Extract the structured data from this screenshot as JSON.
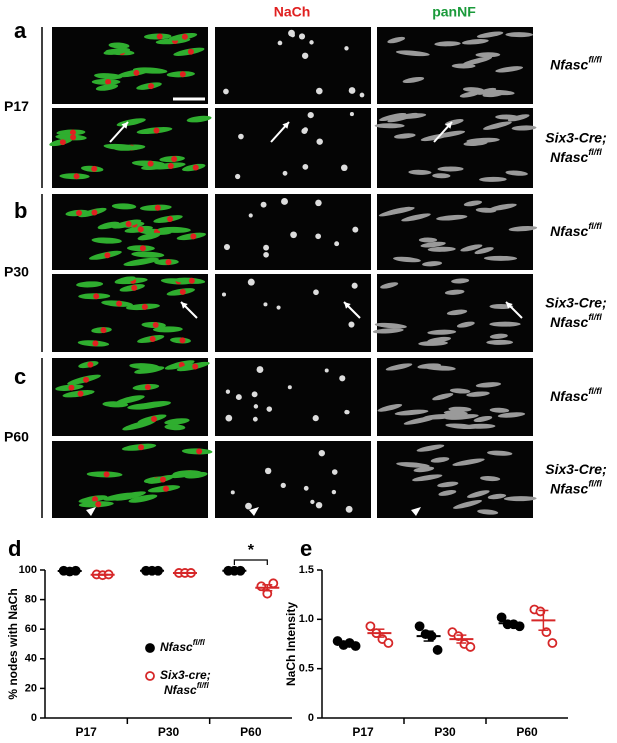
{
  "figure": {
    "panels": [
      {
        "letter": "a",
        "age": "P17"
      },
      {
        "letter": "b",
        "age": "P30"
      },
      {
        "letter": "c",
        "age": "P60"
      }
    ],
    "column_headers": [
      "NaCh",
      "panNF"
    ],
    "genotypes": [
      {
        "text": "Nfasc",
        "sup": "fl/fl"
      },
      {
        "line1": "Six3-Cre;",
        "text": "Nfasc",
        "sup": "fl/fl"
      }
    ]
  },
  "chart_data": [
    {
      "type": "scatter",
      "panel_label": "d",
      "y_label": "% nodes with NaCh",
      "annotation": "*",
      "categories": [
        "P17",
        "P30",
        "P60"
      ],
      "ylim": [
        0,
        100
      ],
      "yticks": [
        0,
        20,
        40,
        60,
        80,
        100
      ],
      "series": [
        {
          "name": [
            "Nfasc"
          ],
          "name_sup": "fl/fl",
          "color": "#000000",
          "filled": true,
          "values": [
            [
              99.5,
              99,
              99.5
            ],
            [
              99.5,
              99.5,
              99.5
            ],
            [
              99.5,
              99.5,
              99.5
            ]
          ],
          "means": [
            99.3,
            99.5,
            99.5
          ],
          "errors": [
            0.2,
            0.2,
            0.2
          ]
        },
        {
          "name": [
            "Six3-cre;",
            "Nfasc"
          ],
          "name_sup": "fl/fl",
          "color": "#d62728",
          "filled": false,
          "values": [
            [
              97,
              96.5,
              97
            ],
            [
              98,
              98,
              98
            ],
            [
              89,
              84,
              91
            ]
          ],
          "means": [
            96.8,
            98,
            88
          ],
          "errors": [
            0.2,
            0.2,
            2
          ]
        }
      ]
    },
    {
      "type": "scatter",
      "panel_label": "e",
      "y_label": "NaCh Intensity",
      "categories": [
        "P17",
        "P30",
        "P60"
      ],
      "ylim": [
        0,
        1.5
      ],
      "yticks": [
        0,
        0.5,
        {
          "value": 1,
          "label": "1.0"
        },
        1.5
      ],
      "series": [
        {
          "color": "#000000",
          "filled": true,
          "values": [
            [
              0.78,
              0.74,
              0.76,
              0.73
            ],
            [
              0.93,
              0.85,
              0.83,
              0.69
            ],
            [
              1.02,
              0.95,
              0.95,
              0.93
            ]
          ],
          "means": [
            0.75,
            0.83,
            0.96
          ],
          "errors": [
            0.02,
            0.05,
            0.02
          ]
        },
        {
          "color": "#d62728",
          "filled": false,
          "values": [
            [
              0.93,
              0.86,
              0.8,
              0.76
            ],
            [
              0.87,
              0.83,
              0.75,
              0.72
            ],
            [
              1.1,
              1.08,
              0.87,
              0.76
            ]
          ],
          "means": [
            0.86,
            0.8,
            0.99
          ],
          "errors": [
            0.04,
            0.04,
            0.1
          ]
        }
      ]
    }
  ]
}
